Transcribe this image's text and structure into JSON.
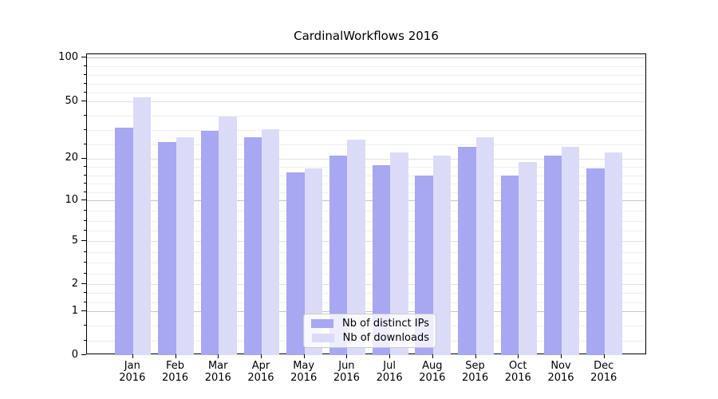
{
  "chart_data": {
    "type": "bar",
    "title": "CardinalWorkflows 2016",
    "categories": [
      "Jan",
      "Feb",
      "Mar",
      "Apr",
      "May",
      "Jun",
      "Jul",
      "Aug",
      "Sep",
      "Oct",
      "Nov",
      "Dec"
    ],
    "x_year_label": "2016",
    "series": [
      {
        "name": "Nb of distinct IPs",
        "color": "#a7a7f2",
        "values": [
          33,
          26,
          31,
          28,
          16,
          21,
          18,
          15,
          24,
          15,
          21,
          17
        ]
      },
      {
        "name": "Nb of downloads",
        "color": "#dbdbf8",
        "values": [
          53,
          28,
          39,
          32,
          17,
          27,
          22,
          21,
          28,
          19,
          24,
          22
        ]
      }
    ],
    "yticks": [
      0,
      1,
      2,
      5,
      10,
      20,
      50,
      100
    ],
    "ylim": [
      0,
      100
    ],
    "yscale": "symlog",
    "grid": "both",
    "legend_position": "lower center"
  }
}
